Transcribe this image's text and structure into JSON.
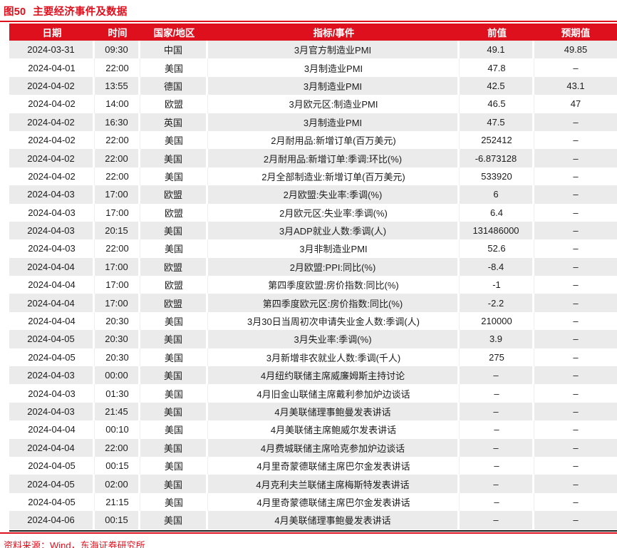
{
  "title": {
    "number": "图50",
    "caption": "主要经济事件及数据"
  },
  "source_note": "资料来源：Wind，东海证券研究所",
  "colors": {
    "accent_red": "#de101e",
    "row_shade": "#ebebeb",
    "text_dark": "#1c1c1c",
    "header_text": "#ffffff"
  },
  "table": {
    "columns": [
      "日期",
      "时间",
      "国家/地区",
      "指标/事件",
      "前值",
      "预期值"
    ],
    "rows": [
      [
        "2024-03-31",
        "09:30",
        "中国",
        "3月官方制造业PMI",
        "49.1",
        "49.85"
      ],
      [
        "2024-04-01",
        "22:00",
        "美国",
        "3月制造业PMI",
        "47.8",
        "–"
      ],
      [
        "2024-04-02",
        "13:55",
        "德国",
        "3月制造业PMI",
        "42.5",
        "43.1"
      ],
      [
        "2024-04-02",
        "14:00",
        "欧盟",
        "3月欧元区:制造业PMI",
        "46.5",
        "47"
      ],
      [
        "2024-04-02",
        "16:30",
        "英国",
        "3月制造业PMI",
        "47.5",
        "–"
      ],
      [
        "2024-04-02",
        "22:00",
        "美国",
        "2月耐用品:新增订单(百万美元)",
        "252412",
        "–"
      ],
      [
        "2024-04-02",
        "22:00",
        "美国",
        "2月耐用品:新增订单:季调:环比(%)",
        "-6.873128",
        "–"
      ],
      [
        "2024-04-02",
        "22:00",
        "美国",
        "2月全部制造业:新增订单(百万美元)",
        "533920",
        "–"
      ],
      [
        "2024-04-03",
        "17:00",
        "欧盟",
        "2月欧盟:失业率:季调(%)",
        "6",
        "–"
      ],
      [
        "2024-04-03",
        "17:00",
        "欧盟",
        "2月欧元区:失业率:季调(%)",
        "6.4",
        "–"
      ],
      [
        "2024-04-03",
        "20:15",
        "美国",
        "3月ADP就业人数:季调(人)",
        "131486000",
        "–"
      ],
      [
        "2024-04-03",
        "22:00",
        "美国",
        "3月非制造业PMI",
        "52.6",
        "–"
      ],
      [
        "2024-04-04",
        "17:00",
        "欧盟",
        "2月欧盟:PPI:同比(%)",
        "-8.4",
        "–"
      ],
      [
        "2024-04-04",
        "17:00",
        "欧盟",
        "第四季度欧盟:房价指数:同比(%)",
        "-1",
        "–"
      ],
      [
        "2024-04-04",
        "17:00",
        "欧盟",
        "第四季度欧元区:房价指数:同比(%)",
        "-2.2",
        "–"
      ],
      [
        "2024-04-04",
        "20:30",
        "美国",
        "3月30日当周初次申请失业金人数:季调(人)",
        "210000",
        "–"
      ],
      [
        "2024-04-05",
        "20:30",
        "美国",
        "3月失业率:季调(%)",
        "3.9",
        "–"
      ],
      [
        "2024-04-05",
        "20:30",
        "美国",
        "3月新增非农就业人数:季调(千人)",
        "275",
        "–"
      ],
      [
        "2024-04-03",
        "00:00",
        "美国",
        "4月纽约联储主席威廉姆斯主持讨论",
        "–",
        "–"
      ],
      [
        "2024-04-03",
        "01:30",
        "美国",
        "4月旧金山联储主席戴利参加炉边谈话",
        "–",
        "–"
      ],
      [
        "2024-04-03",
        "21:45",
        "美国",
        "4月美联储理事鲍曼发表讲话",
        "–",
        "–"
      ],
      [
        "2024-04-04",
        "00:10",
        "美国",
        "4月美联储主席鲍威尔发表讲话",
        "–",
        "–"
      ],
      [
        "2024-04-04",
        "22:00",
        "美国",
        "4月费城联储主席哈克参加炉边谈话",
        "–",
        "–"
      ],
      [
        "2024-04-05",
        "00:15",
        "美国",
        "4月里奇蒙德联储主席巴尔金发表讲话",
        "–",
        "–"
      ],
      [
        "2024-04-05",
        "02:00",
        "美国",
        "4月克利夫兰联储主席梅斯特发表讲话",
        "–",
        "–"
      ],
      [
        "2024-04-05",
        "21:15",
        "美国",
        "4月里奇蒙德联储主席巴尔金发表讲话",
        "–",
        "–"
      ],
      [
        "2024-04-06",
        "00:15",
        "美国",
        "4月美联储理事鲍曼发表讲话",
        "–",
        "–"
      ]
    ]
  }
}
